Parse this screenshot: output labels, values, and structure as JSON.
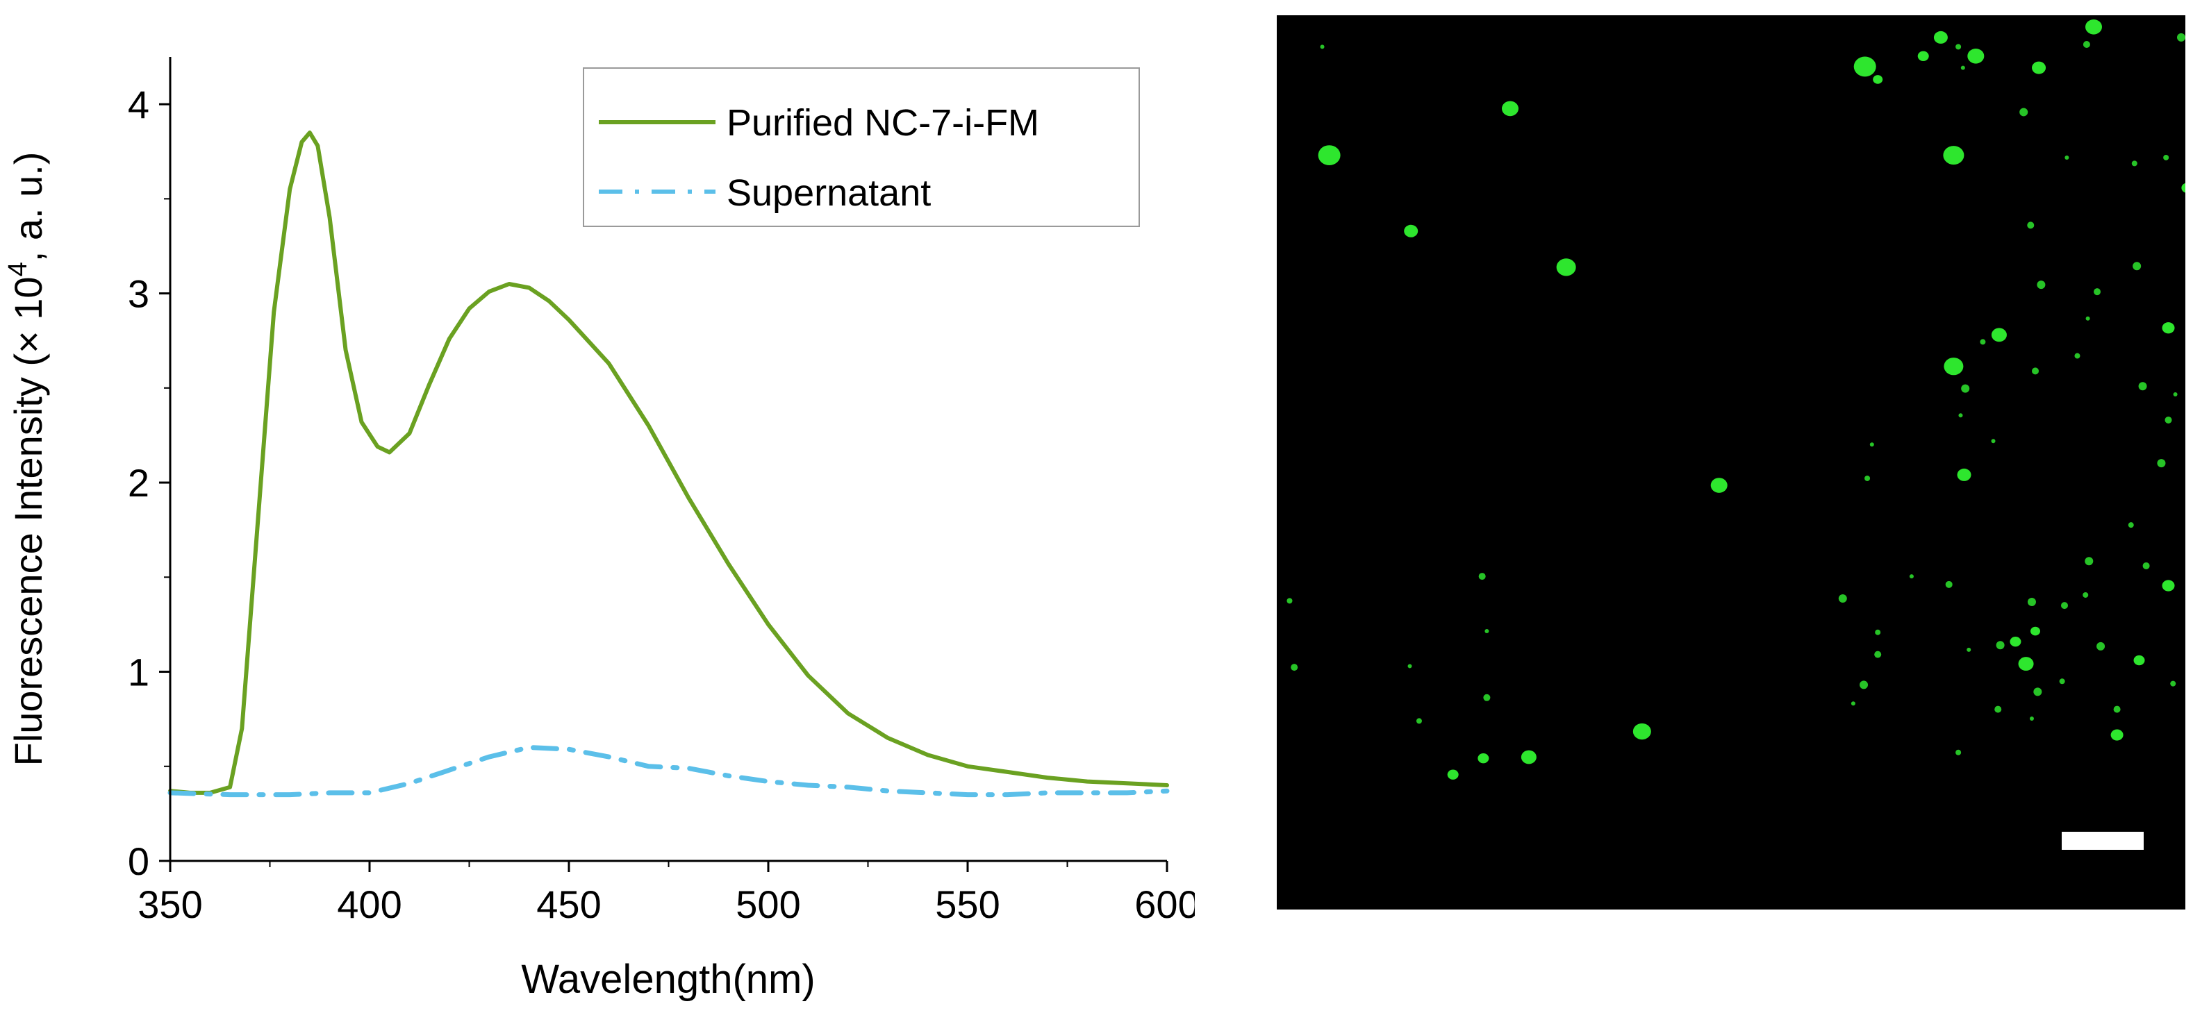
{
  "chart_data": {
    "type": "line",
    "xlabel": "Wavelength(nm)",
    "ylabel": "Fluorescence Intensity (× 10",
    "ylabel_exponent": "4",
    "ylabel_suffix": ", a. u.)",
    "xlim": [
      350,
      600
    ],
    "ylim": [
      0,
      4.25
    ],
    "x_ticks": [
      350,
      400,
      450,
      500,
      550,
      600
    ],
    "y_ticks": [
      0,
      1,
      2,
      3,
      4
    ],
    "legend_position": "top-right",
    "series": [
      {
        "name": "Purified NC-7-i-FM",
        "color": "#6aa121",
        "style": "solid",
        "x": [
          350,
          355,
          360,
          365,
          368,
          372,
          376,
          380,
          383,
          385,
          387,
          390,
          394,
          398,
          402,
          405,
          410,
          415,
          420,
          425,
          430,
          435,
          440,
          445,
          450,
          460,
          470,
          480,
          490,
          500,
          510,
          520,
          530,
          540,
          550,
          560,
          570,
          580,
          590,
          600
        ],
        "values": [
          0.37,
          0.36,
          0.36,
          0.39,
          0.7,
          1.8,
          2.9,
          3.55,
          3.8,
          3.85,
          3.78,
          3.4,
          2.7,
          2.32,
          2.19,
          2.16,
          2.26,
          2.52,
          2.76,
          2.92,
          3.01,
          3.05,
          3.03,
          2.96,
          2.86,
          2.63,
          2.3,
          1.92,
          1.57,
          1.25,
          0.98,
          0.78,
          0.65,
          0.56,
          0.5,
          0.47,
          0.44,
          0.42,
          0.41,
          0.4
        ]
      },
      {
        "name": "Supernatant",
        "color": "#5bbfe9",
        "style": "dashed",
        "x": [
          350,
          365,
          380,
          390,
          400,
          410,
          420,
          430,
          440,
          450,
          460,
          470,
          480,
          490,
          500,
          510,
          520,
          530,
          540,
          550,
          560,
          570,
          580,
          590,
          600
        ],
        "values": [
          0.36,
          0.35,
          0.35,
          0.36,
          0.36,
          0.41,
          0.48,
          0.55,
          0.6,
          0.59,
          0.55,
          0.5,
          0.49,
          0.45,
          0.42,
          0.4,
          0.39,
          0.37,
          0.36,
          0.35,
          0.35,
          0.36,
          0.36,
          0.36,
          0.37
        ]
      }
    ]
  },
  "micrograph": {
    "background_color": "#000000",
    "spot_color": "#2ee62e",
    "scale_bar_color": "#ffffff"
  }
}
